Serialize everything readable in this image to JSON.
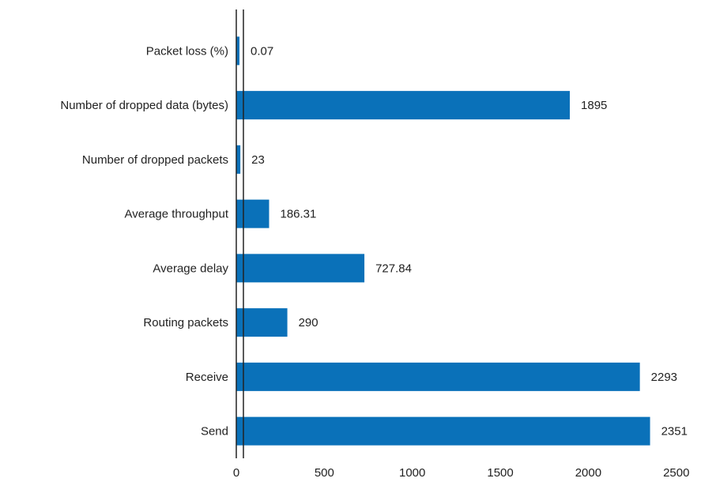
{
  "chart_data": {
    "type": "bar",
    "orientation": "horizontal",
    "categories": [
      "Packet loss (%)",
      "Number of dropped data (bytes)",
      "Number of dropped packets",
      "Average throughput",
      "Average delay",
      "Routing packets",
      "Receive",
      "Send"
    ],
    "values": [
      0.07,
      1895,
      23,
      186.31,
      727.84,
      290,
      2293,
      2351
    ],
    "value_labels": [
      "0.07",
      "1895",
      "23",
      "186.31",
      "727.84",
      "290",
      "2293",
      "2351"
    ],
    "x_ticks": [
      0,
      500,
      1000,
      1500,
      2000,
      2500
    ],
    "x_tick_labels": [
      "0",
      "500",
      "1000",
      "1500",
      "2000",
      "2500"
    ],
    "xlim": [
      0,
      2700
    ],
    "bar_color": "#0a71b9",
    "axis_color": "#222222",
    "grid": false,
    "legend": "none",
    "title": "",
    "xlabel": "",
    "ylabel": ""
  }
}
